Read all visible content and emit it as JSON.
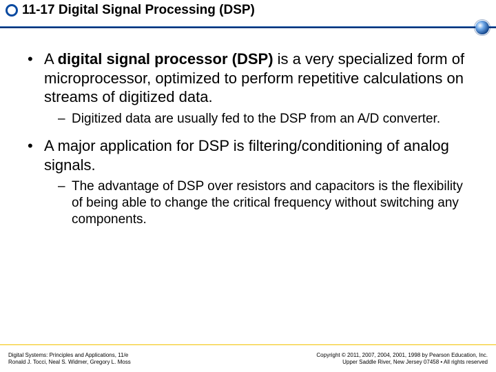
{
  "colors": {
    "accent": "#04357b",
    "bullet_border": "#0a4aa0",
    "footer_border": "#f2c200",
    "divider_glow": "#6fa8e8"
  },
  "header": {
    "title": "11-17 Digital Signal Processing (DSP)"
  },
  "content": {
    "b1": {
      "pre": "A ",
      "bold": "digital signal processor (DSP)",
      "post": " is a very specialized form of microprocessor, optimized to perform repetitive calculations on streams of digitized data."
    },
    "s1": "Digitized data are usually fed to the DSP from an A/D converter.",
    "b2": "A major application for DSP is filtering/conditioning of analog signals.",
    "s2": "The advantage of DSP over resistors and capacitors is the flexibility of being able to change the critical frequency without switching any components."
  },
  "footer": {
    "left_line1": "Digital Systems: Principles and Applications, 11/e",
    "left_line2": "Ronald J. Tocci, Neal S. Widmer, Gregory L. Moss",
    "right_line1": "Copyright © 2011, 2007, 2004, 2001, 1998 by Pearson Education, Inc.",
    "right_line2": "Upper Saddle River, New Jersey 07458 • All rights reserved"
  }
}
